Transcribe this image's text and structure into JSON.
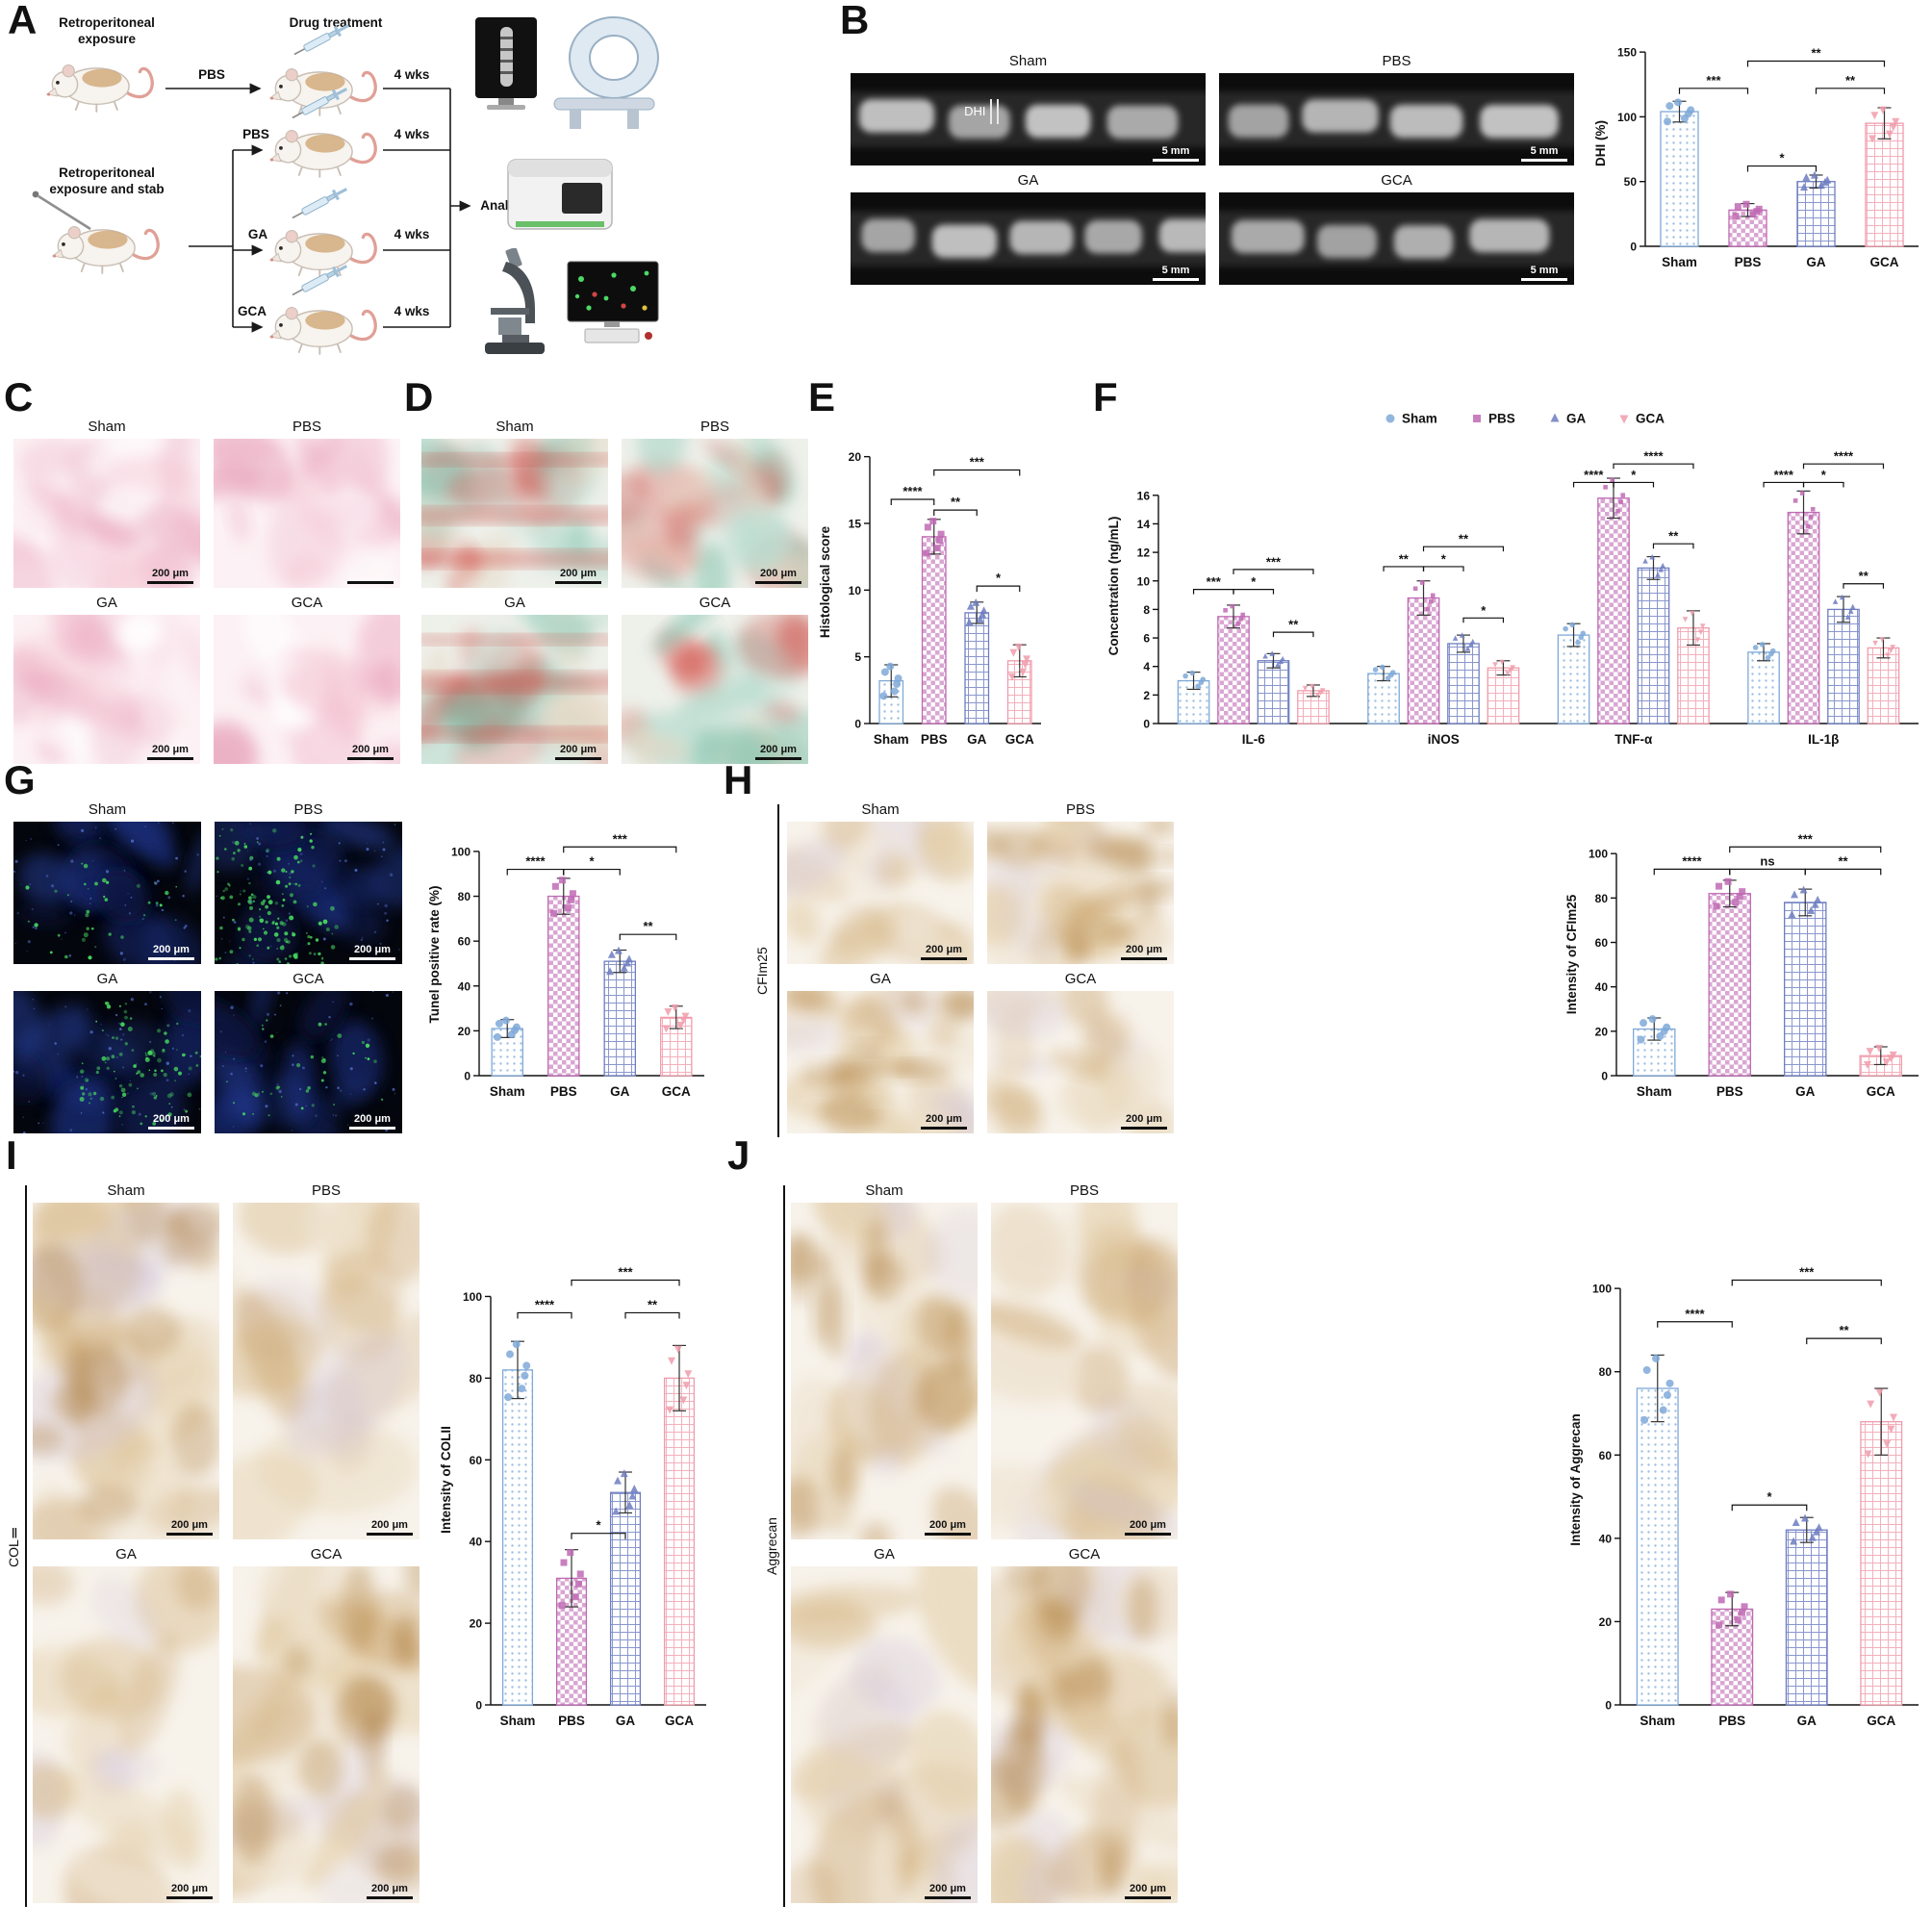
{
  "letters": {
    "a": "A",
    "b": "B",
    "c": "C",
    "d": "D",
    "e": "E",
    "f": "F",
    "g": "G",
    "h": "H",
    "i": "I",
    "j": "J"
  },
  "groups": [
    "Sham",
    "PBS",
    "GA",
    "GCA"
  ],
  "scale_bars": {
    "xray": "5 mm",
    "micro": "200 μm"
  },
  "panel_a": {
    "exposure_title": "Retroperitoneal exposure",
    "drug_title": "Drug treatment",
    "stab_title": "Retroperitoneal exposure and stab",
    "arrow1": "PBS",
    "arrow2": "PBS",
    "arrow3": "GA",
    "arrow4": "GCA",
    "duration": "4 wks",
    "analysis": "Analysis"
  },
  "panel_b": {
    "dhi": "DHI"
  },
  "side_labels": {
    "h": "CFIm25",
    "i": "COLⅡ",
    "j": "Aggrecan"
  },
  "chart_data": [
    {
      "id": "dhi",
      "type": "bar",
      "categories": [
        "Sham",
        "PBS",
        "GA",
        "GCA"
      ],
      "values": [
        104,
        28,
        50,
        95
      ],
      "errors": [
        8,
        5,
        5,
        12
      ],
      "ylabel": "DHI (%)",
      "ylim": [
        0,
        150
      ],
      "yticks": [
        0,
        50,
        100,
        150
      ],
      "sig": [
        {
          "a": 0,
          "b": 1,
          "y": 122,
          "label": "***"
        },
        {
          "a": 1,
          "b": 3,
          "y": 143,
          "label": "**"
        },
        {
          "a": 2,
          "b": 3,
          "y": 122,
          "label": "**"
        },
        {
          "a": 1,
          "b": 2,
          "y": 62,
          "label": "*"
        }
      ]
    },
    {
      "id": "histo",
      "type": "bar",
      "categories": [
        "Sham",
        "PBS",
        "GA",
        "GCA"
      ],
      "values": [
        3.2,
        14,
        8.3,
        4.7
      ],
      "errors": [
        1.2,
        1.3,
        0.8,
        1.2
      ],
      "ylabel": "Histological score",
      "ylim": [
        0,
        20
      ],
      "yticks": [
        0,
        5,
        10,
        15,
        20
      ],
      "sig": [
        {
          "a": 0,
          "b": 1,
          "y": 16.8,
          "label": "****"
        },
        {
          "a": 1,
          "b": 2,
          "y": 16,
          "label": "**"
        },
        {
          "a": 1,
          "b": 3,
          "y": 19,
          "label": "***"
        },
        {
          "a": 2,
          "b": 3,
          "y": 10.3,
          "label": "*"
        }
      ]
    },
    {
      "id": "cyto",
      "type": "grouped_bar",
      "categories": [
        "IL-6",
        "iNOS",
        "TNF-α",
        "IL-1β"
      ],
      "legend": true,
      "series": [
        {
          "name": "Sham",
          "values": [
            3.0,
            3.5,
            6.2,
            5.0
          ],
          "errors": [
            0.6,
            0.5,
            0.8,
            0.6
          ]
        },
        {
          "name": "PBS",
          "values": [
            7.5,
            8.8,
            15.8,
            14.8
          ],
          "errors": [
            0.8,
            1.2,
            1.4,
            1.5
          ]
        },
        {
          "name": "GA",
          "values": [
            4.4,
            5.6,
            10.9,
            8.0
          ],
          "errors": [
            0.5,
            0.6,
            0.8,
            0.9
          ]
        },
        {
          "name": "GCA",
          "values": [
            2.3,
            3.9,
            6.7,
            5.3
          ],
          "errors": [
            0.4,
            0.5,
            1.2,
            0.7
          ]
        }
      ],
      "ylabel": "Concentration (ng/mL)",
      "ylim": [
        0,
        16
      ],
      "yticks": [
        0,
        2,
        4,
        6,
        8,
        10,
        12,
        14,
        16
      ],
      "sig": [
        {
          "cat": 0,
          "a": 0,
          "b": 1,
          "y": 9.4,
          "label": "***"
        },
        {
          "cat": 0,
          "a": 1,
          "b": 2,
          "y": 9.4,
          "label": "*"
        },
        {
          "cat": 0,
          "a": 1,
          "b": 3,
          "y": 10.8,
          "label": "***"
        },
        {
          "cat": 0,
          "a": 2,
          "b": 3,
          "y": 6.4,
          "label": "**"
        },
        {
          "cat": 1,
          "a": 0,
          "b": 1,
          "y": 11.0,
          "label": "**"
        },
        {
          "cat": 1,
          "a": 1,
          "b": 2,
          "y": 11.0,
          "label": "*"
        },
        {
          "cat": 1,
          "a": 1,
          "b": 3,
          "y": 12.4,
          "label": "**"
        },
        {
          "cat": 1,
          "a": 2,
          "b": 3,
          "y": 7.4,
          "label": "*"
        },
        {
          "cat": 2,
          "a": 0,
          "b": 1,
          "y": 16.9,
          "label": "****"
        },
        {
          "cat": 2,
          "a": 1,
          "b": 2,
          "y": 16.9,
          "label": "*"
        },
        {
          "cat": 2,
          "a": 1,
          "b": 3,
          "y": 18.2,
          "label": "****"
        },
        {
          "cat": 2,
          "a": 2,
          "b": 3,
          "y": 12.6,
          "label": "**"
        },
        {
          "cat": 3,
          "a": 0,
          "b": 1,
          "y": 16.9,
          "label": "****"
        },
        {
          "cat": 3,
          "a": 1,
          "b": 2,
          "y": 16.9,
          "label": "*"
        },
        {
          "cat": 3,
          "a": 1,
          "b": 3,
          "y": 18.2,
          "label": "****"
        },
        {
          "cat": 3,
          "a": 2,
          "b": 3,
          "y": 9.8,
          "label": "**"
        }
      ]
    },
    {
      "id": "tunel",
      "type": "bar",
      "categories": [
        "Sham",
        "PBS",
        "GA",
        "GCA"
      ],
      "values": [
        21,
        80,
        51,
        26
      ],
      "errors": [
        4,
        8,
        5,
        5
      ],
      "ylabel": "Tunel positive rate (%)",
      "ylim": [
        0,
        100
      ],
      "yticks": [
        0,
        20,
        40,
        60,
        80,
        100
      ],
      "sig": [
        {
          "a": 0,
          "b": 1,
          "y": 92,
          "label": "****"
        },
        {
          "a": 1,
          "b": 2,
          "y": 92,
          "label": "*"
        },
        {
          "a": 1,
          "b": 3,
          "y": 102,
          "label": "***"
        },
        {
          "a": 2,
          "b": 3,
          "y": 63,
          "label": "**"
        }
      ]
    },
    {
      "id": "cfim",
      "type": "bar",
      "categories": [
        "Sham",
        "PBS",
        "GA",
        "GCA"
      ],
      "values": [
        21,
        82,
        78,
        9
      ],
      "errors": [
        5,
        6,
        6,
        4
      ],
      "ylabel": "Intensity of CFIm25",
      "ylim": [
        0,
        100
      ],
      "yticks": [
        0,
        20,
        40,
        60,
        80,
        100
      ],
      "sig": [
        {
          "a": 0,
          "b": 1,
          "y": 93,
          "label": "****"
        },
        {
          "a": 1,
          "b": 2,
          "y": 93,
          "label": "ns"
        },
        {
          "a": 1,
          "b": 3,
          "y": 103,
          "label": "***"
        },
        {
          "a": 2,
          "b": 3,
          "y": 93,
          "label": "**"
        }
      ]
    },
    {
      "id": "colii",
      "type": "bar",
      "categories": [
        "Sham",
        "PBS",
        "GA",
        "GCA"
      ],
      "values": [
        82,
        31,
        52,
        80
      ],
      "errors": [
        7,
        7,
        5,
        8
      ],
      "ylabel": "Intensity of COLII",
      "ylim": [
        0,
        100
      ],
      "yticks": [
        0,
        20,
        40,
        60,
        80,
        100
      ],
      "sig": [
        {
          "a": 0,
          "b": 1,
          "y": 96,
          "label": "****"
        },
        {
          "a": 1,
          "b": 2,
          "y": 42,
          "label": "*"
        },
        {
          "a": 1,
          "b": 3,
          "y": 104,
          "label": "***"
        },
        {
          "a": 2,
          "b": 3,
          "y": 96,
          "label": "**"
        }
      ]
    },
    {
      "id": "aggr",
      "type": "bar",
      "categories": [
        "Sham",
        "PBS",
        "GA",
        "GCA"
      ],
      "values": [
        76,
        23,
        42,
        68
      ],
      "errors": [
        8,
        4,
        3,
        8
      ],
      "ylabel": "Intensity of Aggrecan",
      "ylim": [
        0,
        100
      ],
      "yticks": [
        0,
        20,
        40,
        60,
        80,
        100
      ],
      "sig": [
        {
          "a": 0,
          "b": 1,
          "y": 92,
          "label": "****"
        },
        {
          "a": 1,
          "b": 2,
          "y": 48,
          "label": "*"
        },
        {
          "a": 1,
          "b": 3,
          "y": 102,
          "label": "***"
        },
        {
          "a": 2,
          "b": 3,
          "y": 88,
          "label": "**"
        }
      ]
    }
  ]
}
